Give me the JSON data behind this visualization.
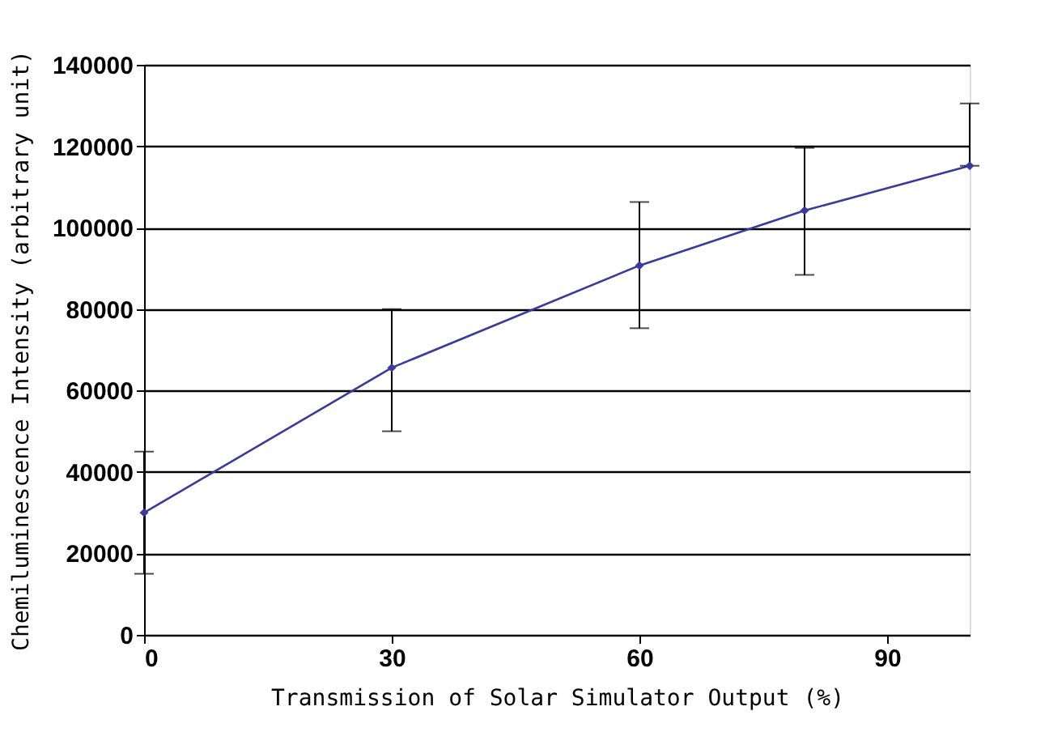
{
  "chart_data": {
    "type": "line",
    "xlabel": "Transmission of Solar Simulator Output (%)",
    "ylabel": "Chemiluminescence Intensity (arbitrary unit)",
    "x": [
      0,
      30,
      60,
      80,
      100
    ],
    "series": [
      {
        "color": "#3a3a9a",
        "values": [
          30000,
          65600,
          90700,
          104200,
          115200
        ],
        "errors": [
          [
            15000,
            45000
          ],
          [
            50000,
            80000
          ],
          [
            75300,
            106300
          ],
          [
            88400,
            119600
          ],
          [
            115200,
            130500
          ]
        ]
      }
    ],
    "xlim": [
      0,
      100
    ],
    "xticks": [
      0,
      30,
      60,
      90
    ],
    "ylim": [
      0,
      140000
    ],
    "yticks": [
      0,
      20000,
      40000,
      60000,
      80000,
      100000,
      120000,
      140000
    ],
    "grid": "y",
    "marker": "diamond",
    "line_style": "solid"
  }
}
